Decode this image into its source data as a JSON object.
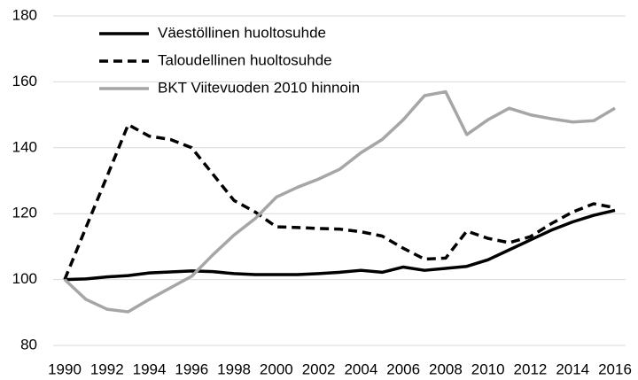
{
  "chart_data": {
    "type": "line",
    "x": [
      1990,
      1991,
      1992,
      1993,
      1994,
      1995,
      1996,
      1997,
      1998,
      1999,
      2000,
      2001,
      2002,
      2003,
      2004,
      2005,
      2006,
      2007,
      2008,
      2009,
      2010,
      2011,
      2012,
      2013,
      2014,
      2015,
      2016
    ],
    "xlim": [
      1990,
      2016
    ],
    "xticks": [
      1990,
      1992,
      1994,
      1996,
      1998,
      2000,
      2002,
      2004,
      2006,
      2008,
      2010,
      2012,
      2014,
      2016
    ],
    "ylim": [
      80,
      180
    ],
    "yticks": [
      80,
      100,
      120,
      140,
      160,
      180
    ],
    "grid": true,
    "legend": "upper left",
    "series": [
      {
        "name": "Väestöllinen huoltosuhde",
        "color": "#000000",
        "dash": "solid",
        "values": [
          100,
          100.2,
          100.8,
          101.2,
          102,
          102.3,
          102.6,
          102.4,
          101.8,
          101.5,
          101.5,
          101.5,
          101.8,
          102.2,
          102.8,
          102.2,
          103.8,
          102.8,
          103.4,
          104,
          106,
          109,
          112,
          115,
          117.5,
          119.5,
          121
        ]
      },
      {
        "name": "Taloudellinen huoltosuhde",
        "color": "#000000",
        "dash": "dashed",
        "values": [
          100,
          115.7,
          131.3,
          147,
          143.5,
          142.5,
          140,
          132,
          124,
          120.5,
          116,
          115.8,
          115.5,
          115.3,
          114.5,
          113.2,
          109.5,
          106.2,
          106.5,
          114.7,
          112.5,
          111.2,
          113,
          117,
          120.5,
          123,
          121.8
        ]
      },
      {
        "name": "BKT Viitevuoden 2010 hinnoin",
        "color": "#a6a6a6",
        "dash": "solid",
        "values": [
          100,
          94,
          91,
          90.2,
          94,
          97.5,
          101,
          107.5,
          113.5,
          118.5,
          125,
          128,
          130.5,
          133.5,
          138.5,
          142.5,
          148.5,
          155.8,
          157,
          144,
          148.5,
          152,
          150,
          148.8,
          147.8,
          148.2,
          152
        ]
      }
    ]
  }
}
